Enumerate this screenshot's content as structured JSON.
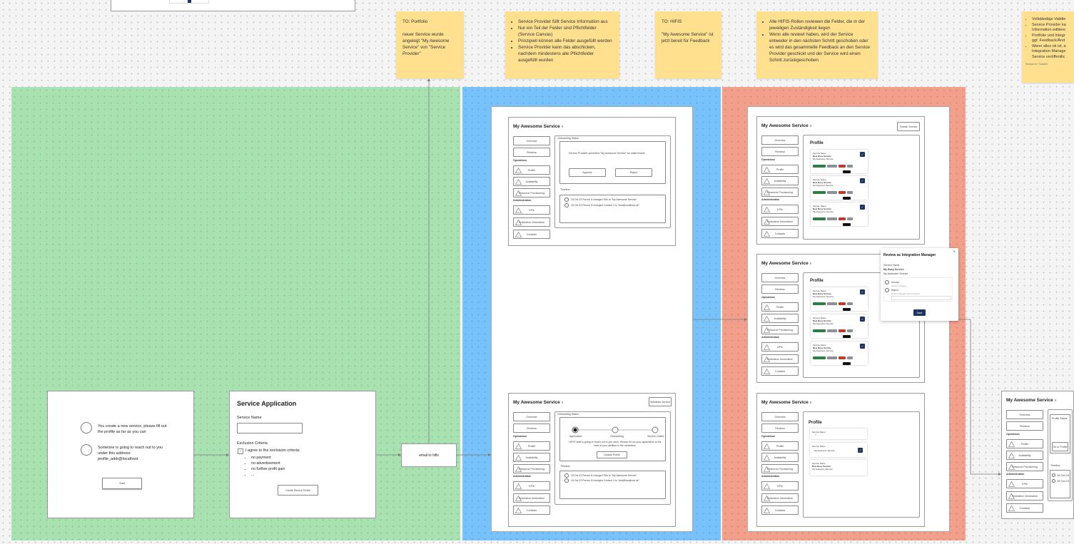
{
  "colors": {
    "green_frame": "#a9e2b1",
    "blue_frame": "#77c2fa",
    "red_frame": "#f29f8c",
    "sticky": "#ffe08f",
    "primary_button": "#1d3461"
  },
  "stickies": [
    {
      "lines": [
        "TO: Portfolio",
        "",
        "neuer Service wurde angelegt \"My Awesome Service\" von \"Service Provider\""
      ]
    },
    {
      "bullets": [
        "Service Provider füllt Service Information aus",
        "Nur ein Teil der Felder sind Pflichtfelder (Service Canvas)",
        "Prinzipiell können alle Felder ausgefüllt werden",
        "Service Provider kann das abschicken, nachdem mindestens alle Pflichtfelder ausgefüllt wurden"
      ]
    },
    {
      "lines": [
        "TO: HIFIS",
        "",
        "\"My Awesome Service\" ist jetzt bereit für Feedback"
      ]
    },
    {
      "bullets": [
        "Alle HIFIS-Rollen reviewen die Felder, die in der jeweiligen Zuständigkeit liegen",
        "Wenn alle reviewt haben, wird der Service entweder in den nächsten Schritt geschoben oder es wird das gesammelte Feedback an den Service Provider geschickt und der Service wird einen Schritt zurückgeschoben"
      ]
    },
    {
      "bullets": [
        "Vollständige Validie",
        "Service Provider ka Information editiere",
        "Portfolio und Integr ggf. Feedback/Änd",
        "Wenn alles ok ist, a Integration Manage Service veröffentlic"
      ],
      "author": "Benjamin Tollante"
    }
  ],
  "start_card": {
    "step1": "You create a new service, please fill out the profile as far as you can",
    "step2": "Someone is going to reach out to you under this address: profile_addr@localhost",
    "start_button": "Start"
  },
  "application": {
    "title": "Service Application",
    "service_name_label": "Service Name",
    "service_name_value": "",
    "exclusion_label": "Exclusion Criteria",
    "agree_text": "I agree to the exclusion criteria:",
    "criteria": [
      "no payment",
      "no advertisement",
      "no further profit gain",
      "..."
    ],
    "create_button": "Create Service Profile"
  },
  "email_box": "email to hifis",
  "mockup": {
    "title": "My Awesome Service",
    "chevron": "v",
    "nav": {
      "overview": "Overview",
      "reviews": "Reviews",
      "operations": "Operations",
      "profile": "Profile",
      "availability": "Availability",
      "resource": "Resource Provisioning",
      "administration": "Administration",
      "kpis": "KPIs",
      "federation": "Federation Information",
      "contacts": "Contacts"
    }
  },
  "review_mock": {
    "status_label": "Onboarding Status",
    "status_text": "Service Provider submitted \"My Awesome Service\" for initial review",
    "approve": "Approve",
    "reject": "Reject",
    "timeline_label": "Timeline",
    "timeline": [
      "18 Oct 23 Person A changed Title to \"My Awesome Service\"",
      "18 Oct 23 Person B changed Contact 3 to \"test@localhost.de\""
    ]
  },
  "provider_mock": {
    "withdraw": "Withdraw Service",
    "status_label": "Onboarding Status",
    "steps": [
      "Application",
      "Onboarding",
      "Service Online"
    ],
    "current_step": 0,
    "info": "HIFIS staff is going to reach out to you soon. Please fill out your application to the best of your abilities in the meantime.",
    "update_button": "Update Profile",
    "timeline_label": "Timeline",
    "timeline": [
      "18 Oct 23 Person A changed Title to \"My Awesome Service\"",
      "18 Oct 23 Person B changed Contact 3 to \"test@localhost.de\""
    ]
  },
  "profile_mock": {
    "publish": "Publish Service",
    "heading": "Profile",
    "card_label": "Service Name",
    "card_value1": "New Busy Service",
    "card_value2": "My Awesome Service"
  },
  "modal": {
    "title": "Review as Integration Manager",
    "field_label": "Service Name",
    "old_value": "My Busy Service",
    "new_value": "My Awesome Service",
    "accept": "Accept",
    "accept_hint": "Accept changes",
    "reject": "Reject",
    "reject_hint": "Reject changes with comment",
    "save": "Save"
  },
  "edit_mock": {
    "heading": "Profile",
    "field_label": "Service Name",
    "field_value": "My Awesome Service"
  },
  "final_mock": {
    "status_label": "Profile Status",
    "button": "Go to Profile",
    "timeline_label": "Timeline",
    "timeline": [
      "18 Oct 23",
      "18 Oct 23"
    ]
  }
}
